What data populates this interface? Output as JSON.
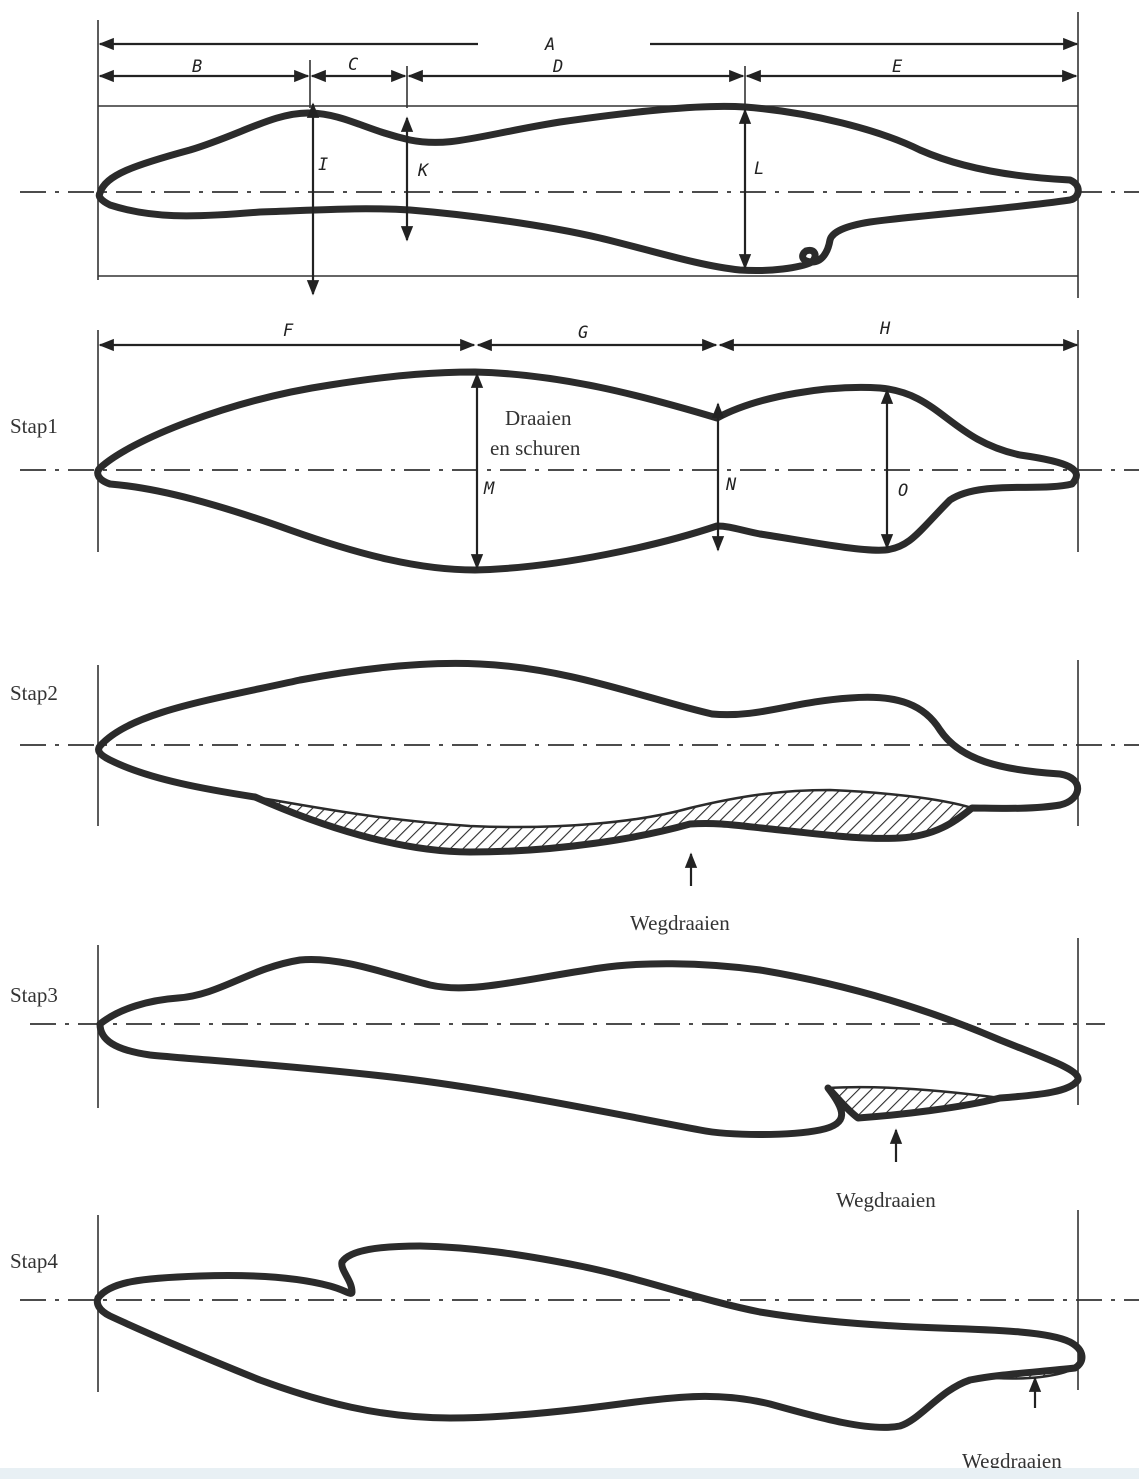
{
  "dimension_letters": {
    "A": "A",
    "B": "B",
    "C": "C",
    "D": "D",
    "E": "E",
    "F": "F",
    "G": "G",
    "H": "H",
    "I": "I",
    "K": "K",
    "L": "L",
    "M": "M",
    "N": "N",
    "O": "O"
  },
  "steps": {
    "step1": "Stap1",
    "step2": "Stap2",
    "step3": "Stap3",
    "step4": "Stap4"
  },
  "annotations": {
    "turn_and_sand_line1": "Draaien",
    "turn_and_sand_line2": "en schuren",
    "turn_away_2": "Wegdraaien",
    "turn_away_3": "Wegdraaien",
    "turn_away_4": "Wegdraaien"
  }
}
